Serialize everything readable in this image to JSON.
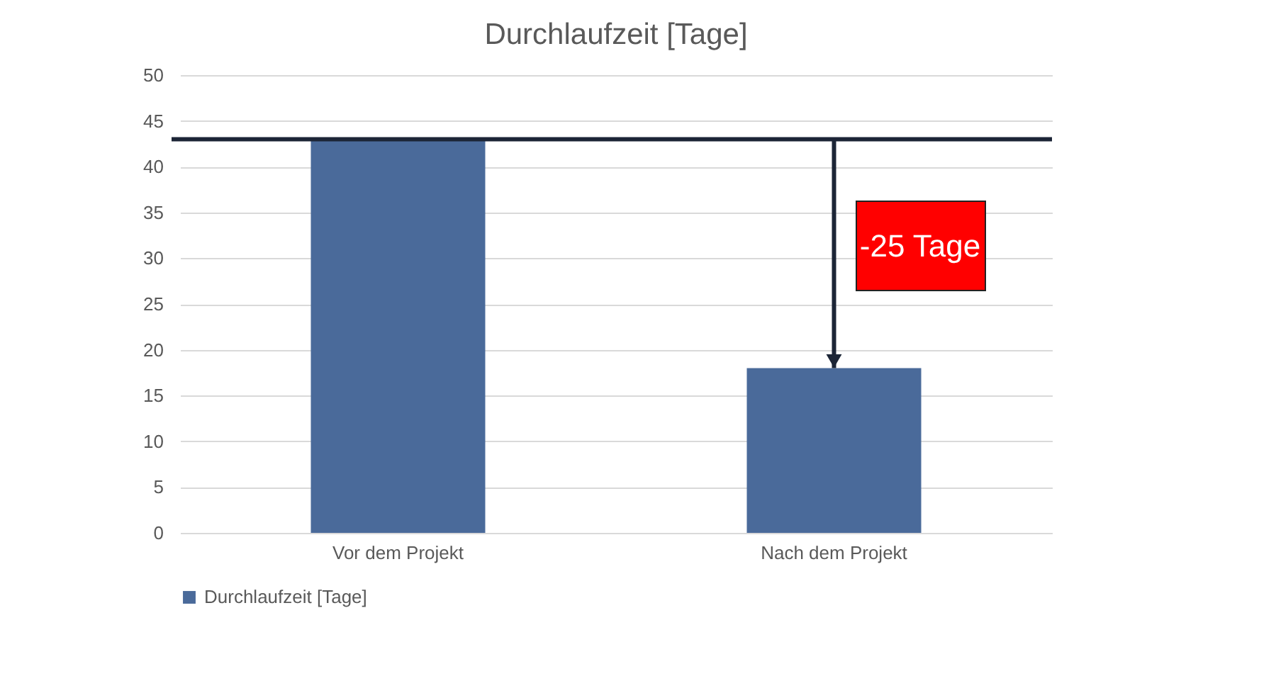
{
  "chart_data": {
    "type": "bar",
    "title": "Durchlaufzeit [Tage]",
    "categories": [
      "Vor dem Projekt",
      "Nach dem Projekt"
    ],
    "series": [
      {
        "name": "Durchlaufzeit [Tage]",
        "color": "#4a6a9a",
        "values": [
          43,
          18
        ]
      }
    ],
    "ylim": [
      0,
      50
    ],
    "yticks": [
      0,
      5,
      10,
      15,
      20,
      25,
      30,
      35,
      40,
      45,
      50
    ],
    "grid": "y",
    "legend": "bottom",
    "ref_lines": [
      {
        "axis": "y",
        "value": 43,
        "color": "#1c2536"
      }
    ],
    "annotations": [
      "-25 Tage"
    ]
  }
}
